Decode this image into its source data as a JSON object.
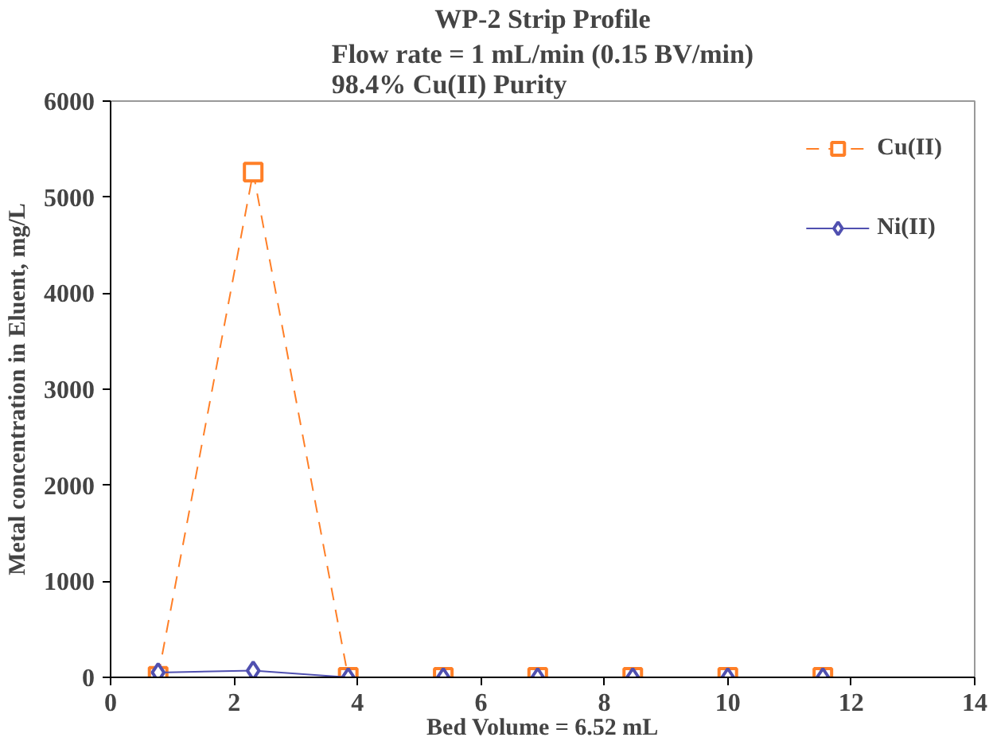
{
  "chart_data": {
    "type": "line",
    "title": "WP-2 Strip Profile",
    "subtitle": "Flow rate = 1 mL/min (0.15 BV/min)\n98.4% Cu(II) Purity",
    "xlabel": "Bed Volume = 6.52 mL",
    "ylabel": "Metal concentration in Eluent, mg/L",
    "x": [
      0.77,
      2.31,
      3.85,
      5.39,
      6.92,
      8.46,
      10.0,
      11.54
    ],
    "series": [
      {
        "name": "Cu(II)",
        "color": "#ff7f27",
        "values": [
          10,
          5260,
          0,
          0,
          0,
          0,
          0,
          0
        ],
        "marker": "square",
        "line_style": "dashed"
      },
      {
        "name": "Ni(II)",
        "color": "#5050b0",
        "values": [
          50,
          70,
          0,
          0,
          0,
          0,
          0,
          0
        ],
        "marker": "diamond",
        "line_style": "solid"
      }
    ],
    "xlim": [
      0,
      14
    ],
    "xticks": [
      0,
      2,
      4,
      6,
      8,
      10,
      12,
      14
    ],
    "ylim": [
      0,
      6000
    ],
    "yticks": [
      0,
      1000,
      2000,
      3000,
      4000,
      5000,
      6000
    ],
    "grid": false,
    "legend": "top right"
  }
}
